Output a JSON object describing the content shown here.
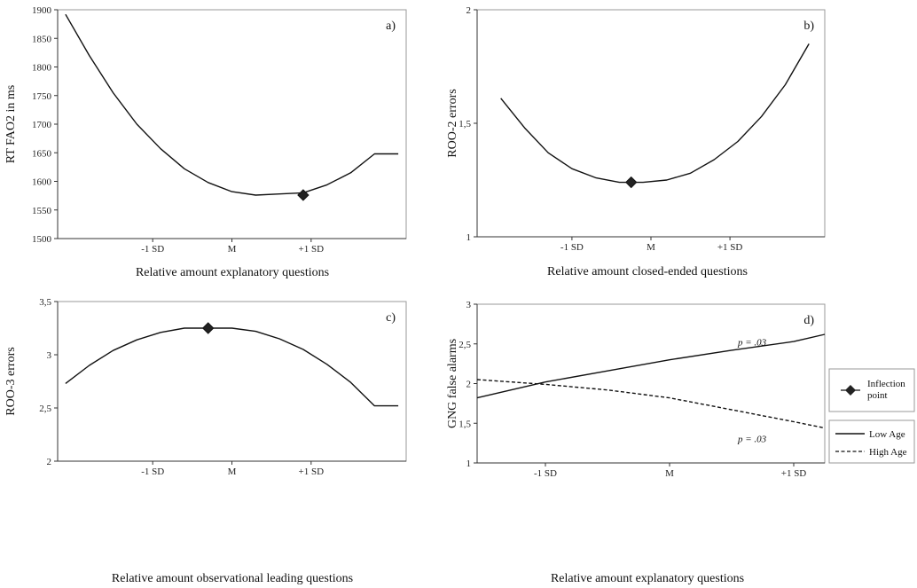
{
  "chart_data": [
    {
      "type": "line",
      "panel_label": "a)",
      "xlabel": "Relative amount explanatory questions",
      "ylabel": "RT FAO2 in ms",
      "ylim": [
        1500,
        1900
      ],
      "yticks": [
        "1500",
        "1550",
        "1600",
        "1650",
        "1700",
        "1750",
        "1800",
        "1850",
        "1900"
      ],
      "xlim": [
        -2.2,
        2.2
      ],
      "xticks": [
        {
          "v": -1,
          "label": "-1 SD"
        },
        {
          "v": 0,
          "label": "M"
        },
        {
          "v": 1,
          "label": "+1 SD"
        }
      ],
      "series": [
        {
          "style": "solid",
          "x": [
            -2.1,
            -1.8,
            -1.5,
            -1.2,
            -0.9,
            -0.6,
            -0.3,
            0.0,
            0.3,
            0.6,
            0.9,
            1.2,
            1.5,
            1.8,
            2.1
          ],
          "y": [
            1892,
            1820,
            1755,
            1700,
            1657,
            1622,
            1598,
            1582,
            1576,
            1578,
            1580,
            1594,
            1615,
            1648,
            1648
          ]
        }
      ],
      "inflection": {
        "x": 0.9,
        "y": 1576
      }
    },
    {
      "type": "line",
      "panel_label": "b)",
      "xlabel": "Relative amount closed-ended questions",
      "ylabel": "ROO-2 errors",
      "ylim": [
        1,
        2
      ],
      "yticks": [
        "1",
        "1,5",
        "2"
      ],
      "xlim": [
        -2.2,
        2.2
      ],
      "xticks": [
        {
          "v": -1,
          "label": "-1 SD"
        },
        {
          "v": 0,
          "label": "M"
        },
        {
          "v": 1,
          "label": "+1 SD"
        }
      ],
      "series": [
        {
          "style": "solid",
          "x": [
            -1.9,
            -1.6,
            -1.3,
            -1.0,
            -0.7,
            -0.4,
            -0.1,
            0.2,
            0.5,
            0.8,
            1.1,
            1.4,
            1.7,
            2.0
          ],
          "y": [
            1.61,
            1.48,
            1.37,
            1.3,
            1.26,
            1.24,
            1.24,
            1.25,
            1.28,
            1.34,
            1.42,
            1.53,
            1.67,
            1.85
          ]
        }
      ],
      "inflection": {
        "x": -0.25,
        "y": 1.24
      }
    },
    {
      "type": "line",
      "panel_label": "c)",
      "xlabel": "Relative amount observational leading questions",
      "ylabel": "ROO-3 errors",
      "ylim": [
        2,
        3.5
      ],
      "yticks": [
        "2",
        "2,5",
        "3",
        "3,5"
      ],
      "xlim": [
        -2.2,
        2.2
      ],
      "xticks": [
        {
          "v": -1,
          "label": "-1 SD"
        },
        {
          "v": 0,
          "label": "M"
        },
        {
          "v": 1,
          "label": "+1 SD"
        }
      ],
      "series": [
        {
          "style": "solid",
          "x": [
            -2.1,
            -1.8,
            -1.5,
            -1.2,
            -0.9,
            -0.6,
            -0.3,
            0.0,
            0.3,
            0.6,
            0.9,
            1.2,
            1.5,
            1.8,
            2.1
          ],
          "y": [
            2.73,
            2.9,
            3.04,
            3.14,
            3.21,
            3.25,
            3.25,
            3.25,
            3.22,
            3.15,
            3.05,
            2.91,
            2.74,
            2.52,
            2.52
          ]
        }
      ],
      "inflection": {
        "x": -0.3,
        "y": 3.25
      }
    },
    {
      "type": "line",
      "panel_label": "d)",
      "xlabel": "Relative amount explanatory questions",
      "ylabel": "GNG false alarms",
      "ylim": [
        1,
        3
      ],
      "yticks": [
        "1",
        "1,5",
        "2",
        "2,5",
        "3"
      ],
      "xlim": [
        -1.55,
        1.25
      ],
      "xticks": [
        {
          "v": -1,
          "label": "-1 SD"
        },
        {
          "v": 0,
          "label": "M"
        },
        {
          "v": 1,
          "label": "+1 SD"
        }
      ],
      "series": [
        {
          "name": "Low Age",
          "style": "solid",
          "x": [
            -1.55,
            -1.0,
            -0.5,
            0.0,
            0.5,
            1.0,
            1.25
          ],
          "y": [
            1.82,
            2.02,
            2.16,
            2.3,
            2.42,
            2.53,
            2.62
          ]
        },
        {
          "name": "High Age",
          "style": "dashed",
          "x": [
            -1.55,
            -1.0,
            -0.5,
            0.0,
            0.5,
            1.0,
            1.25
          ],
          "y": [
            2.05,
            1.99,
            1.92,
            1.82,
            1.67,
            1.52,
            1.44
          ]
        }
      ],
      "annotations": [
        {
          "text": "p = .03",
          "x": 0.55,
          "y": 2.48
        },
        {
          "text": "p = .03",
          "x": 0.55,
          "y": 1.26
        }
      ]
    }
  ],
  "legend": {
    "inflection_label": "Inflection point",
    "low_age_label": "Low Age",
    "high_age_label": "High Age"
  }
}
